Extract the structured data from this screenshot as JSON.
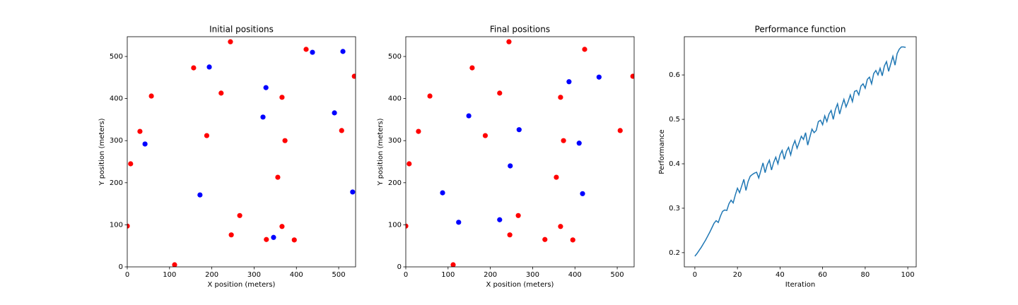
{
  "chart_data": [
    {
      "type": "scatter",
      "title": "Initial positions",
      "x_label": "X position (meters)",
      "y_label": "Y position (meters)",
      "xlim": [
        0,
        540
      ],
      "ylim": [
        0,
        547
      ],
      "xticks": [
        0,
        100,
        200,
        300,
        400,
        500
      ],
      "yticks": [
        0,
        100,
        200,
        300,
        400,
        500
      ],
      "series": [
        {
          "color": "#ff0000",
          "x": [
            244,
            423,
            537,
            157,
            57,
            222,
            366,
            30,
            507,
            373,
            8,
            188,
            356,
            266,
            246,
            366,
            329,
            395,
            112,
            0
          ],
          "values": [
            535,
            517,
            453,
            473,
            406,
            413,
            403,
            322,
            324,
            300,
            245,
            312,
            213,
            122,
            76,
            96,
            65,
            64,
            5,
            97
          ]
        },
        {
          "color": "#0000ff",
          "x": [
            438,
            510,
            194,
            328,
            321,
            490,
            42,
            172,
            533,
            346
          ],
          "values": [
            510,
            512,
            475,
            426,
            356,
            366,
            292,
            171,
            178,
            70
          ]
        }
      ]
    },
    {
      "type": "scatter",
      "title": "Final positions",
      "x_label": "X position (meters)",
      "y_label": "Y position (meters)",
      "xlim": [
        0,
        540
      ],
      "ylim": [
        0,
        547
      ],
      "xticks": [
        0,
        100,
        200,
        300,
        400,
        500
      ],
      "yticks": [
        0,
        100,
        200,
        300,
        400,
        500
      ],
      "series": [
        {
          "color": "#ff0000",
          "x": [
            244,
            423,
            537,
            157,
            57,
            222,
            366,
            30,
            507,
            373,
            8,
            188,
            356,
            266,
            246,
            366,
            329,
            395,
            112,
            0
          ],
          "values": [
            535,
            517,
            453,
            473,
            406,
            413,
            403,
            322,
            324,
            300,
            245,
            312,
            213,
            122,
            76,
            96,
            65,
            64,
            5,
            97
          ]
        },
        {
          "color": "#0000ff",
          "x": [
            386,
            457,
            149,
            268,
            410,
            247,
            87,
            418,
            125,
            222
          ],
          "values": [
            440,
            451,
            359,
            326,
            294,
            240,
            176,
            174,
            106,
            112
          ]
        }
      ]
    },
    {
      "type": "line",
      "title": "Performance function",
      "x_label": "Iteration",
      "y_label": "Performance",
      "xlim": [
        -4.95,
        103.95
      ],
      "ylim": [
        0.168,
        0.686
      ],
      "xticks": [
        0,
        20,
        40,
        60,
        80,
        100
      ],
      "yticks": [
        0.2,
        0.3,
        0.4,
        0.5,
        0.6
      ],
      "series": [
        {
          "color": "#1f77b4",
          "x": [
            0,
            1,
            2,
            3,
            4,
            5,
            6,
            7,
            8,
            9,
            10,
            11,
            12,
            13,
            14,
            15,
            16,
            17,
            18,
            19,
            20,
            21,
            22,
            23,
            24,
            25,
            26,
            27,
            28,
            29,
            30,
            31,
            32,
            33,
            34,
            35,
            36,
            37,
            38,
            39,
            40,
            41,
            42,
            43,
            44,
            45,
            46,
            47,
            48,
            49,
            50,
            51,
            52,
            53,
            54,
            55,
            56,
            57,
            58,
            59,
            60,
            61,
            62,
            63,
            64,
            65,
            66,
            67,
            68,
            69,
            70,
            71,
            72,
            73,
            74,
            75,
            76,
            77,
            78,
            79,
            80,
            81,
            82,
            83,
            84,
            85,
            86,
            87,
            88,
            89,
            90,
            91,
            92,
            93,
            94,
            95,
            96,
            97,
            98,
            99
          ],
          "values": [
            0.192,
            0.198,
            0.205,
            0.212,
            0.22,
            0.228,
            0.237,
            0.246,
            0.256,
            0.266,
            0.272,
            0.268,
            0.282,
            0.293,
            0.296,
            0.295,
            0.31,
            0.318,
            0.312,
            0.33,
            0.345,
            0.335,
            0.35,
            0.365,
            0.34,
            0.36,
            0.372,
            0.376,
            0.379,
            0.381,
            0.368,
            0.385,
            0.402,
            0.38,
            0.398,
            0.408,
            0.386,
            0.403,
            0.415,
            0.4,
            0.42,
            0.43,
            0.41,
            0.428,
            0.437,
            0.42,
            0.44,
            0.452,
            0.435,
            0.448,
            0.462,
            0.455,
            0.47,
            0.442,
            0.46,
            0.478,
            0.47,
            0.475,
            0.495,
            0.498,
            0.488,
            0.508,
            0.495,
            0.512,
            0.52,
            0.5,
            0.522,
            0.535,
            0.512,
            0.53,
            0.545,
            0.528,
            0.54,
            0.555,
            0.54,
            0.563,
            0.565,
            0.555,
            0.575,
            0.58,
            0.57,
            0.59,
            0.595,
            0.58,
            0.603,
            0.61,
            0.6,
            0.615,
            0.598,
            0.62,
            0.63,
            0.608,
            0.625,
            0.642,
            0.622,
            0.648,
            0.658,
            0.663,
            0.663,
            0.662
          ]
        }
      ]
    }
  ]
}
